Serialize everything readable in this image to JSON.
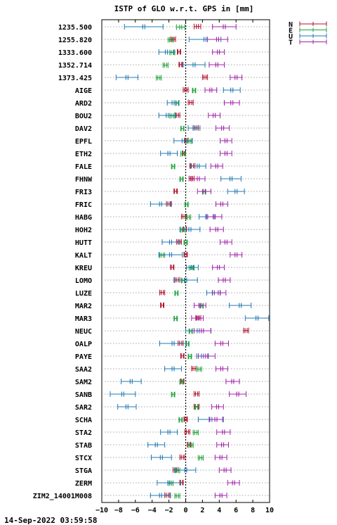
{
  "chart_data": {
    "type": "errorbar",
    "title": "ISTP of GLO w.r.t. GPS in [mm]",
    "footer": "14-Sep-2022 03:59:58",
    "xlim": [
      -10,
      10
    ],
    "xticks": [
      -10,
      -8,
      -6,
      -4,
      -2,
      0,
      2,
      4,
      6,
      8,
      10
    ],
    "grid": "horizontal dotted",
    "zero_line": true,
    "legend_placement": "top-right",
    "series": [
      {
        "name": "N",
        "color": "#b0102a"
      },
      {
        "name": "E",
        "color": "#1fa33c"
      },
      {
        "name": "U",
        "color": "#1f78b4"
      },
      {
        "name": "T",
        "color": "#a020a8"
      }
    ],
    "stations": [
      {
        "label": "1235.500",
        "N": [
          1.4,
          0.4
        ],
        "E": [
          -0.6,
          0.5
        ],
        "U": [
          -5.0,
          2.3
        ],
        "T": [
          4.6,
          1.4
        ]
      },
      {
        "label": "1255.820",
        "N": [
          -1.5,
          0.3
        ],
        "E": [
          -1.8,
          0.3
        ],
        "U": [
          2.3,
          1.9
        ],
        "T": [
          3.8,
          1.2
        ]
      },
      {
        "label": "1333.600",
        "N": [
          -0.8,
          0.2
        ],
        "E": [
          -1.6,
          0.3
        ],
        "U": [
          -2.3,
          0.9
        ],
        "T": [
          3.9,
          0.7
        ]
      },
      {
        "label": "1352.714",
        "N": [
          -0.6,
          0.2
        ],
        "E": [
          -2.4,
          0.3
        ],
        "U": [
          1.0,
          1.3
        ],
        "T": [
          3.7,
          0.9
        ]
      },
      {
        "label": "1373.425",
        "N": [
          2.3,
          0.3
        ],
        "E": [
          -3.2,
          0.3
        ],
        "U": [
          -7.0,
          1.3
        ],
        "T": [
          6.0,
          0.7
        ]
      },
      {
        "label": "AIGE",
        "N": [
          0.0,
          0.3
        ],
        "E": [
          1.0,
          0.2
        ],
        "U": [
          5.5,
          1.0
        ],
        "T": [
          3.0,
          0.7
        ]
      },
      {
        "label": "ARD2",
        "N": [
          0.6,
          0.3
        ],
        "E": [
          -1.0,
          0.2
        ],
        "U": [
          -1.5,
          0.7
        ],
        "T": [
          5.5,
          0.9
        ]
      },
      {
        "label": "BOU2",
        "N": [
          -1.0,
          0.3
        ],
        "E": [
          -1.6,
          0.3
        ],
        "U": [
          -2.2,
          1.0
        ],
        "T": [
          3.4,
          0.7
        ]
      },
      {
        "label": "DAV2",
        "N": [
          1.2,
          0.3
        ],
        "E": [
          -0.4,
          0.2
        ],
        "U": [
          1.0,
          0.7
        ],
        "T": [
          4.4,
          0.8
        ]
      },
      {
        "label": "EPFL",
        "N": [
          0.1,
          0.2
        ],
        "E": [
          0.4,
          0.3
        ],
        "U": [
          -0.3,
          1.1
        ],
        "T": [
          4.8,
          0.7
        ]
      },
      {
        "label": "ETH2",
        "N": [
          -0.2,
          0.2
        ],
        "E": [
          -0.3,
          0.3
        ],
        "U": [
          -2.0,
          1.0
        ],
        "T": [
          4.8,
          0.7
        ]
      },
      {
        "label": "FALE",
        "N": [
          0.8,
          0.3
        ],
        "E": [
          -1.5,
          0.2
        ],
        "U": [
          1.5,
          0.9
        ],
        "T": [
          3.7,
          0.7
        ]
      },
      {
        "label": "FHNW",
        "N": [
          0.7,
          0.3
        ],
        "E": [
          -0.5,
          0.2
        ],
        "U": [
          5.4,
          1.2
        ],
        "T": [
          1.5,
          0.8
        ]
      },
      {
        "label": "FRI3",
        "N": [
          -1.2,
          0.2
        ],
        "E": [
          2.2,
          0.2
        ],
        "U": [
          6.0,
          1.0
        ],
        "T": [
          2.2,
          0.8
        ]
      },
      {
        "label": "FRIC",
        "N": [
          -2.0,
          0.3
        ],
        "E": [
          0.1,
          0.2
        ],
        "U": [
          -3.0,
          1.2
        ],
        "T": [
          4.3,
          0.7
        ]
      },
      {
        "label": "HABG",
        "N": [
          -0.2,
          0.3
        ],
        "E": [
          0.3,
          0.3
        ],
        "U": [
          2.5,
          0.9
        ],
        "T": [
          3.4,
          0.9
        ]
      },
      {
        "label": "HOH2",
        "N": [
          -0.1,
          0.2
        ],
        "E": [
          -0.3,
          0.3
        ],
        "U": [
          0.5,
          1.2
        ],
        "T": [
          3.7,
          0.8
        ]
      },
      {
        "label": "HUTT",
        "N": [
          -0.8,
          0.3
        ],
        "E": [
          0.0,
          0.2
        ],
        "U": [
          -1.8,
          1.0
        ],
        "T": [
          4.8,
          0.7
        ]
      },
      {
        "label": "KALT",
        "N": [
          0.0,
          0.2
        ],
        "E": [
          -2.8,
          0.3
        ],
        "U": [
          -1.8,
          1.4
        ],
        "T": [
          6.0,
          0.7
        ]
      },
      {
        "label": "KREU",
        "N": [
          -1.6,
          0.2
        ],
        "E": [
          0.7,
          0.3
        ],
        "U": [
          0.8,
          0.7
        ],
        "T": [
          3.9,
          0.7
        ]
      },
      {
        "label": "LOMO",
        "N": [
          -1.0,
          0.3
        ],
        "E": [
          -0.3,
          0.2
        ],
        "U": [
          0.0,
          1.4
        ],
        "T": [
          4.6,
          0.7
        ]
      },
      {
        "label": "LUZE",
        "N": [
          -2.8,
          0.3
        ],
        "E": [
          -1.1,
          0.2
        ],
        "U": [
          3.3,
          0.8
        ],
        "T": [
          4.0,
          0.8
        ]
      },
      {
        "label": "MAR2",
        "N": [
          -2.8,
          0.2
        ],
        "E": [
          1.9,
          0.2
        ],
        "U": [
          6.5,
          1.3
        ],
        "T": [
          1.7,
          0.7
        ]
      },
      {
        "label": "MAR3",
        "N": [
          1.5,
          0.3
        ],
        "E": [
          -1.2,
          0.2
        ],
        "U": [
          8.5,
          1.4
        ],
        "T": [
          1.4,
          0.7
        ]
      },
      {
        "label": "NEUC",
        "N": [
          7.2,
          0.3
        ],
        "E": [
          0.6,
          0.2
        ],
        "U": [
          1.5,
          1.5
        ],
        "T": [
          2.0,
          1.0
        ]
      },
      {
        "label": "OALP",
        "N": [
          -0.6,
          0.3
        ],
        "E": [
          0.2,
          0.2
        ],
        "U": [
          -1.5,
          1.6
        ],
        "T": [
          4.3,
          0.8
        ]
      },
      {
        "label": "PAYE",
        "N": [
          -0.4,
          0.2
        ],
        "E": [
          0.5,
          0.2
        ],
        "U": [
          2.0,
          0.7
        ],
        "T": [
          2.5,
          1.0
        ]
      },
      {
        "label": "SAA2",
        "N": [
          1.0,
          0.3
        ],
        "E": [
          1.6,
          0.3
        ],
        "U": [
          -1.5,
          1.0
        ],
        "T": [
          4.3,
          0.7
        ]
      },
      {
        "label": "SAM2",
        "N": [
          -0.4,
          0.2
        ],
        "E": [
          -0.5,
          0.2
        ],
        "U": [
          -6.5,
          1.2
        ],
        "T": [
          5.6,
          0.8
        ]
      },
      {
        "label": "SANB",
        "N": [
          1.3,
          0.3
        ],
        "E": [
          -1.5,
          0.2
        ],
        "U": [
          -7.5,
          1.5
        ],
        "T": [
          6.2,
          1.0
        ]
      },
      {
        "label": "SAR2",
        "N": [
          1.3,
          0.3
        ],
        "E": [
          1.3,
          0.2
        ],
        "U": [
          -7.0,
          1.1
        ],
        "T": [
          3.8,
          0.7
        ]
      },
      {
        "label": "SCHA",
        "N": [
          0.0,
          0.2
        ],
        "E": [
          -0.6,
          0.2
        ],
        "U": [
          3.0,
          1.5
        ],
        "T": [
          3.6,
          0.8
        ]
      },
      {
        "label": "STA2",
        "N": [
          0.2,
          0.3
        ],
        "E": [
          1.2,
          0.3
        ],
        "U": [
          -2.0,
          1.0
        ],
        "T": [
          4.5,
          0.8
        ]
      },
      {
        "label": "STAB",
        "N": [
          0.4,
          0.2
        ],
        "E": [
          0.6,
          0.3
        ],
        "U": [
          -3.5,
          1.0
        ],
        "T": [
          4.4,
          0.7
        ]
      },
      {
        "label": "STCX",
        "N": [
          -0.4,
          0.3
        ],
        "E": [
          1.8,
          0.3
        ],
        "U": [
          -2.9,
          1.2
        ],
        "T": [
          4.2,
          0.7
        ]
      },
      {
        "label": "STGA",
        "N": [
          -1.2,
          0.3
        ],
        "E": [
          -1.0,
          0.3
        ],
        "U": [
          0.0,
          1.2
        ],
        "T": [
          4.7,
          0.7
        ]
      },
      {
        "label": "ZERM",
        "N": [
          -0.5,
          0.2
        ],
        "E": [
          -1.8,
          0.3
        ],
        "U": [
          -2.0,
          1.4
        ],
        "T": [
          5.7,
          0.7
        ]
      },
      {
        "label": "ZIM2_14001M008",
        "N": [
          -2.2,
          0.3
        ],
        "E": [
          -1.0,
          0.3
        ],
        "U": [
          -3.0,
          1.2
        ],
        "T": [
          4.2,
          0.7
        ]
      }
    ]
  }
}
